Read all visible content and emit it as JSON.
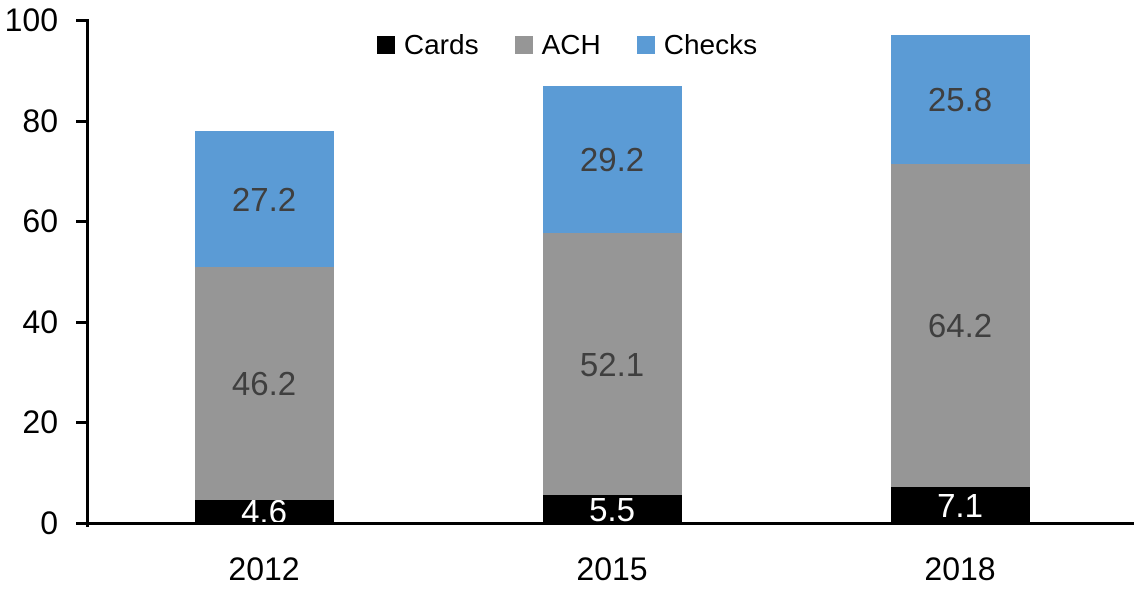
{
  "chart_data": {
    "type": "bar",
    "variant": "stacked-column",
    "title": "",
    "xlabel": "",
    "ylabel": "",
    "categories": [
      "2012",
      "2015",
      "2018"
    ],
    "series": [
      {
        "name": "Cards",
        "color": "#000000",
        "label_color": "#ffffff",
        "values": [
          4.6,
          5.5,
          7.1
        ]
      },
      {
        "name": "ACH",
        "color": "#969696",
        "label_color": "#3f3f3f",
        "values": [
          46.2,
          52.1,
          64.2
        ]
      },
      {
        "name": "Checks",
        "color": "#5b9bd5",
        "label_color": "#3f3f3f",
        "values": [
          27.2,
          29.2,
          25.8
        ]
      }
    ],
    "totals": [
      78.0,
      86.8,
      97.1
    ],
    "ylim": [
      0,
      100
    ],
    "yticks": [
      0,
      20,
      40,
      60,
      80,
      100
    ],
    "legend_position": "top-center",
    "legend_entries": [
      "Cards",
      "ACH",
      "Checks"
    ],
    "grid": false,
    "axis_color": "#000000",
    "background_color": "#ffffff"
  }
}
